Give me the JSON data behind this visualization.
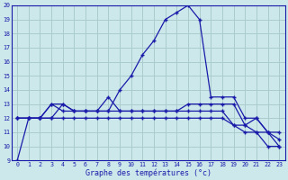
{
  "title": "Graphe des températures (°c)",
  "bg_color": "#cce8ea",
  "grid_color": "#aacccc",
  "line_color": "#1a1aaa",
  "x_labels": [
    "0",
    "1",
    "2",
    "3",
    "4",
    "5",
    "6",
    "7",
    "8",
    "9",
    "10",
    "11",
    "12",
    "13",
    "14",
    "15",
    "16",
    "17",
    "18",
    "19",
    "20",
    "21",
    "22",
    "23"
  ],
  "ylim_min": 9,
  "ylim_max": 20,
  "yticks": [
    9,
    10,
    11,
    12,
    13,
    14,
    15,
    16,
    17,
    18,
    19,
    20
  ],
  "series1": [
    9,
    12,
    12,
    13,
    13,
    12.5,
    12.5,
    12.5,
    12.5,
    14,
    15,
    16.5,
    17.5,
    19,
    19.5,
    20,
    19,
    13.5,
    13.5,
    13.5,
    12,
    12,
    11,
    10
  ],
  "series2": [
    12,
    12,
    12,
    13,
    12.5,
    12.5,
    12.5,
    12.5,
    12.5,
    12.5,
    12.5,
    12.5,
    12.5,
    12.5,
    12.5,
    13,
    13,
    13,
    13,
    13,
    11.5,
    11,
    11,
    11
  ],
  "series3": [
    12,
    12,
    12,
    12,
    13,
    12.5,
    12.5,
    12.5,
    13.5,
    12.5,
    12.5,
    12.5,
    12.5,
    12.5,
    12.5,
    12.5,
    12.5,
    12.5,
    12.5,
    11.5,
    11.5,
    12,
    11,
    10.5
  ],
  "series4": [
    12,
    12,
    12,
    12,
    12,
    12,
    12,
    12,
    12,
    12,
    12,
    12,
    12,
    12,
    12,
    12,
    12,
    12,
    12,
    11.5,
    11,
    11,
    10,
    10
  ]
}
